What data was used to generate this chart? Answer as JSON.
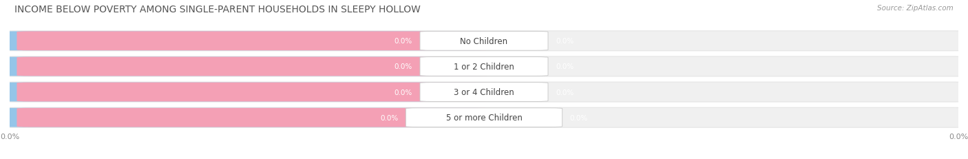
{
  "title": "INCOME BELOW POVERTY AMONG SINGLE-PARENT HOUSEHOLDS IN SLEEPY HOLLOW",
  "source_text": "Source: ZipAtlas.com",
  "categories": [
    "No Children",
    "1 or 2 Children",
    "3 or 4 Children",
    "5 or more Children"
  ],
  "father_values": [
    0.0,
    0.0,
    0.0,
    0.0
  ],
  "mother_values": [
    0.0,
    0.0,
    0.0,
    0.0
  ],
  "father_color": "#95c5e8",
  "mother_color": "#f4a0b5",
  "title_fontsize": 10,
  "axis_label_fontsize": 8,
  "category_fontsize": 8.5,
  "value_fontsize": 7.5,
  "fig_width": 14.06,
  "fig_height": 2.32,
  "background_color": "#ffffff",
  "row_color": "#efefef",
  "row_edge_color": "#e0e0e0"
}
